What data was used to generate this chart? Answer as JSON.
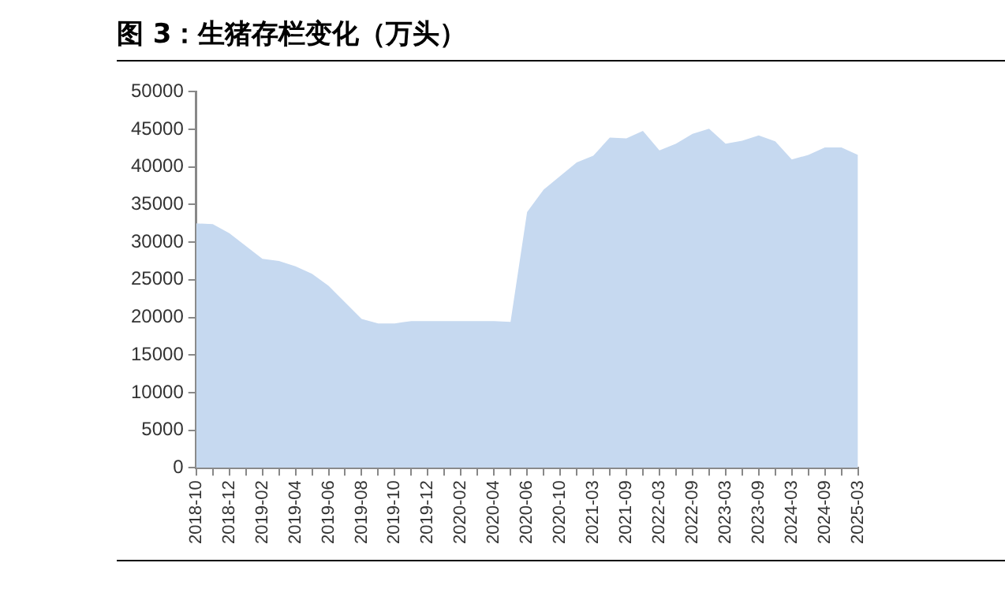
{
  "chart_data": {
    "type": "area",
    "title": "图 3：生猪存栏变化（万头）",
    "categories": [
      "2018-10",
      null,
      "2018-12",
      null,
      "2019-02",
      null,
      "2019-04",
      null,
      "2019-06",
      null,
      "2019-08",
      null,
      "2019-10",
      null,
      "2019-12",
      null,
      "2020-02",
      null,
      "2020-04",
      null,
      "2020-06",
      null,
      "2020-10",
      null,
      "2021-03",
      null,
      "2021-09",
      null,
      "2022-03",
      null,
      "2022-09",
      null,
      "2023-03",
      null,
      "2023-09",
      null,
      "2024-03",
      null,
      "2024-09",
      null,
      "2025-03"
    ],
    "series": [
      {
        "color": "#c6d9f0",
        "values": [
          32500,
          32400,
          31200,
          29500,
          27800,
          27500,
          26800,
          25800,
          24200,
          22000,
          19800,
          19200,
          19200,
          19500,
          19500,
          19500,
          19500,
          19500,
          19500,
          19400,
          34000,
          37000,
          38800,
          40600,
          41500,
          43900,
          43800,
          44800,
          42200,
          43100,
          44400,
          45100,
          43100,
          43500,
          44200,
          43400,
          41000,
          41600,
          42600,
          42600,
          41600
        ]
      }
    ],
    "ylim": [
      0,
      50000
    ],
    "yticks": [
      0,
      5000,
      10000,
      15000,
      20000,
      25000,
      30000,
      35000,
      40000,
      45000,
      50000
    ],
    "grid": false,
    "legend": false
  }
}
